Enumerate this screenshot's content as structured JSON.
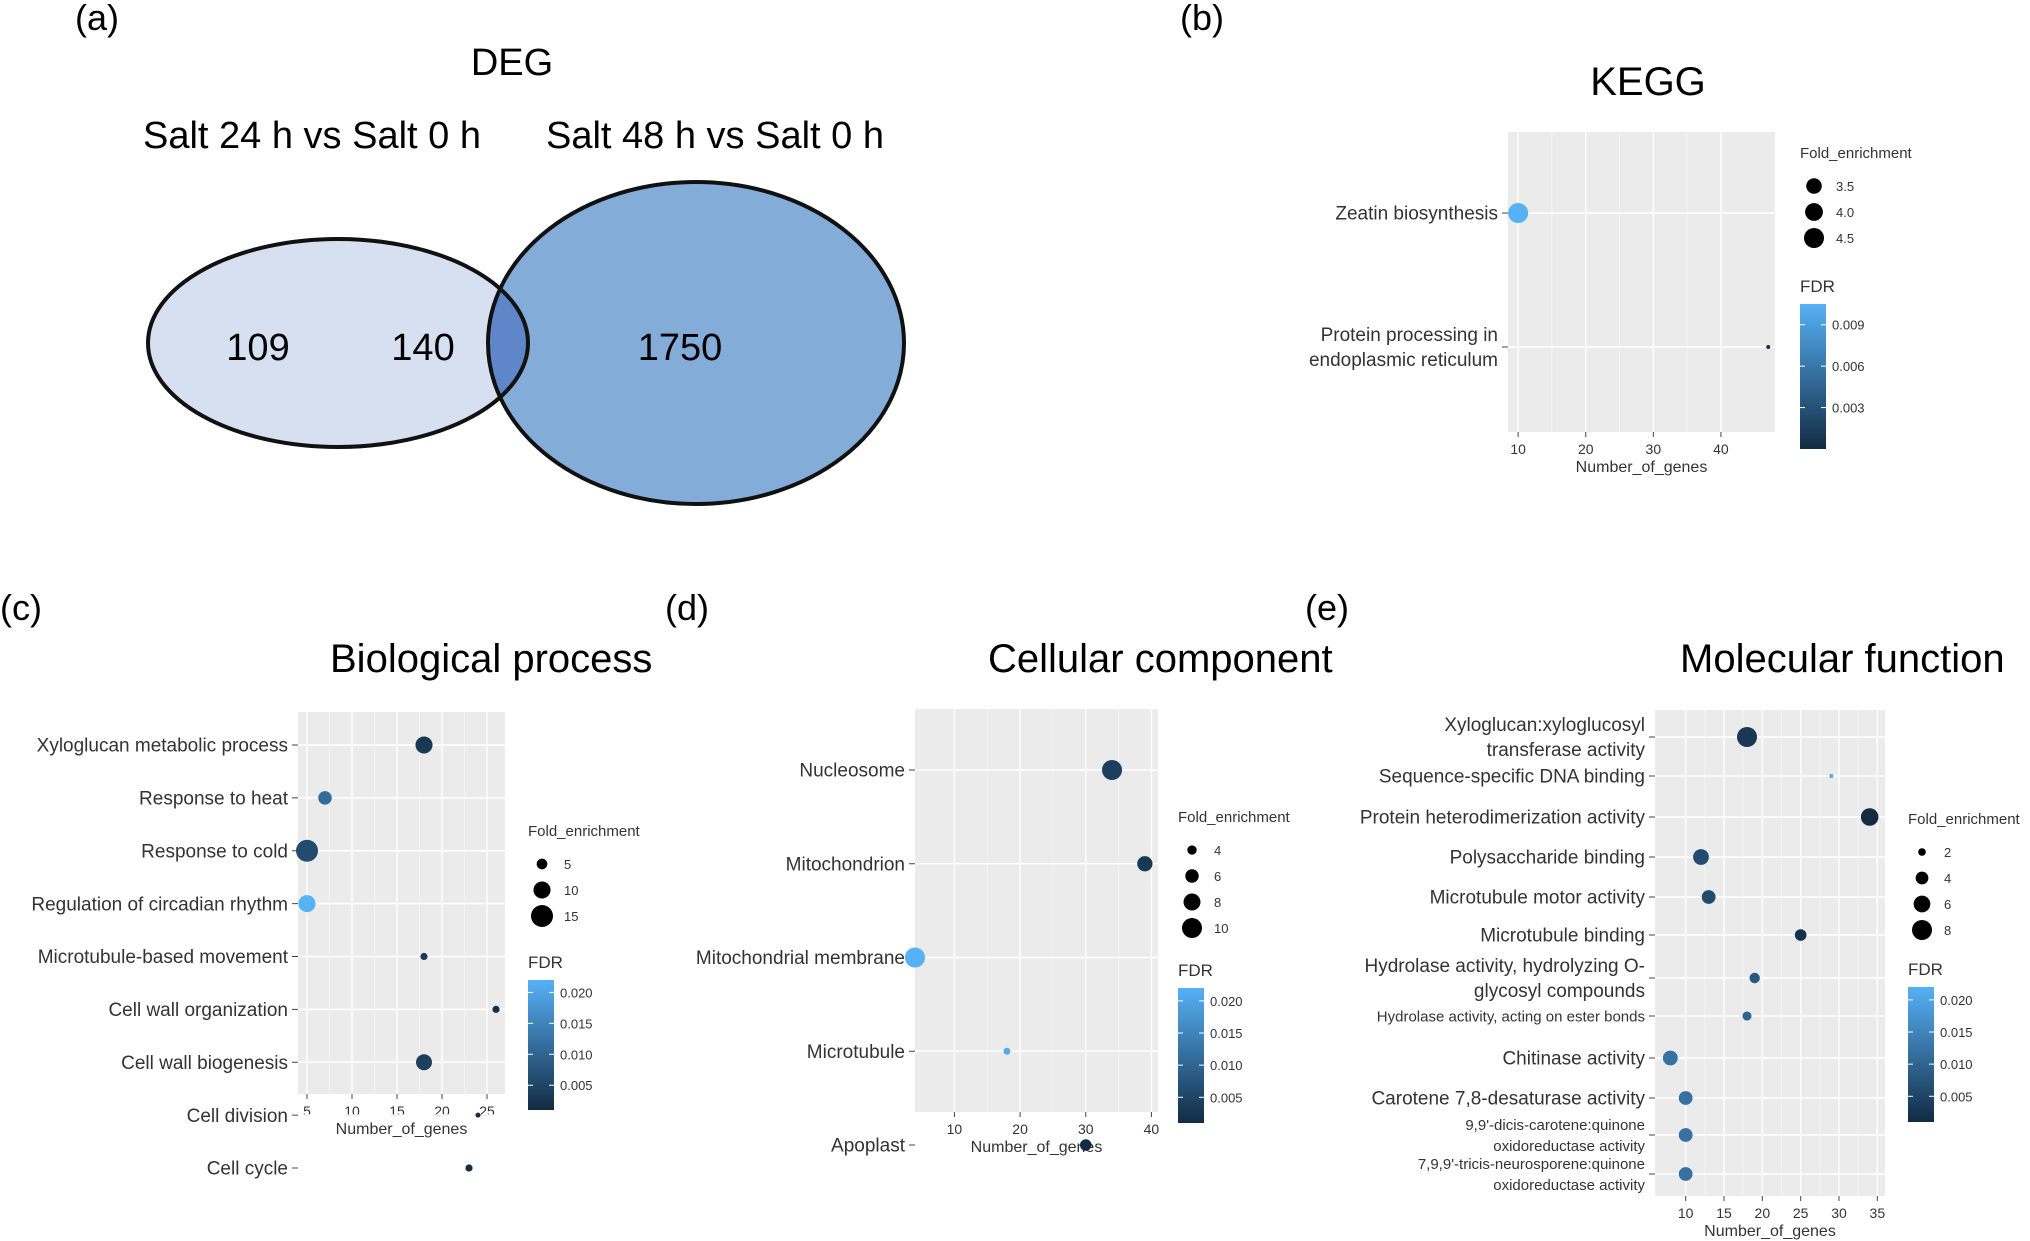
{
  "panels": {
    "a": "(a)",
    "b": "(b)",
    "c": "(c)",
    "d": "(d)",
    "e": "(e)"
  },
  "venn": {
    "title": "DEG",
    "left_label": "Salt 24 h vs Salt 0 h",
    "right_label": "Salt 48 h vs Salt 0 h",
    "left_only": "109",
    "overlap": "140",
    "right_only": "1750",
    "colors": {
      "left": "#d6e0f0",
      "overlap": "#5f86c8",
      "right": "#84acd8"
    }
  },
  "colors": {
    "fdr_high": "#56b1f7",
    "fdr_low": "#132b43",
    "panel_bg": "#ebebeb"
  },
  "chart_data": [
    {
      "id": "kegg",
      "type": "scatter",
      "title": "KEGG",
      "xlabel": "Number_of_genes",
      "xlim": [
        8.5,
        48
      ],
      "xticks": [
        10,
        20,
        30,
        40
      ],
      "categories": [
        "Zeatin biosynthesis",
        "Protein processing in endoplasmic reticulum"
      ],
      "category_labels": [
        [
          "Zeatin biosynthesis"
        ],
        [
          "Protein processing in",
          "endoplasmic reticulum"
        ]
      ],
      "points": [
        {
          "term": "Zeatin biosynthesis",
          "genes": 10,
          "fold_enrichment": 4.5,
          "fdr": 0.0105
        },
        {
          "term": "Protein processing in endoplasmic reticulum",
          "genes": 47,
          "fold_enrichment": 1.5,
          "fdr": 0.0005
        }
      ],
      "size_legend": {
        "title": "Fold_enrichment",
        "values": [
          3.5,
          4.0,
          4.5
        ],
        "labels": [
          "3.5",
          "4.0",
          "4.5"
        ],
        "range": [
          1.5,
          4.5
        ]
      },
      "color_legend": {
        "title": "FDR",
        "values": [
          0.009,
          0.006,
          0.003
        ],
        "labels": [
          "0.009",
          "0.006",
          "0.003"
        ],
        "range": [
          0,
          0.0105
        ]
      }
    },
    {
      "id": "bp",
      "type": "scatter",
      "title": "Biological process",
      "xlabel": "Number_of_genes",
      "xlim": [
        4,
        27
      ],
      "xticks": [
        5,
        10,
        15,
        20,
        25
      ],
      "categories": [
        "Xyloglucan metabolic process",
        "Response to heat",
        "Response to cold",
        "Regulation of circadian rhythm",
        "Microtubule-based movement",
        "Cell wall organization",
        "Cell wall biogenesis",
        "Cell division",
        "Cell cycle"
      ],
      "category_labels": [
        [
          "Xyloglucan metabolic process"
        ],
        [
          "Response to heat"
        ],
        [
          "Response to cold"
        ],
        [
          "Regulation of circadian rhythm"
        ],
        [
          "Microtubule-based movement"
        ],
        [
          "Cell wall organization"
        ],
        [
          "Cell wall biogenesis"
        ],
        [
          "Cell division"
        ],
        [
          "Cell cycle"
        ]
      ],
      "points": [
        {
          "term": "Xyloglucan metabolic process",
          "genes": 18,
          "fold_enrichment": 10,
          "fdr": 0.003
        },
        {
          "term": "Response to heat",
          "genes": 7,
          "fold_enrichment": 7,
          "fdr": 0.011
        },
        {
          "term": "Response to cold",
          "genes": 5,
          "fold_enrichment": 15,
          "fdr": 0.006
        },
        {
          "term": "Regulation of circadian rhythm",
          "genes": 5,
          "fold_enrichment": 10,
          "fdr": 0.022
        },
        {
          "term": "Microtubule-based movement",
          "genes": 18,
          "fold_enrichment": 3,
          "fdr": 0.003
        },
        {
          "term": "Cell wall organization",
          "genes": 26,
          "fold_enrichment": 3,
          "fdr": 0.002
        },
        {
          "term": "Cell wall biogenesis",
          "genes": 18,
          "fold_enrichment": 9,
          "fdr": 0.004
        },
        {
          "term": "Cell division",
          "genes": 24,
          "fold_enrichment": 2,
          "fdr": 0.001
        },
        {
          "term": "Cell cycle",
          "genes": 23,
          "fold_enrichment": 3,
          "fdr": 0.001
        }
      ],
      "size_legend": {
        "title": "Fold_enrichment",
        "values": [
          5,
          10,
          15
        ],
        "labels": [
          "5",
          "10",
          "15"
        ],
        "range": [
          2,
          15
        ]
      },
      "color_legend": {
        "title": "FDR",
        "values": [
          0.02,
          0.015,
          0.01,
          0.005
        ],
        "labels": [
          "0.020",
          "0.015",
          "0.010",
          "0.005"
        ],
        "range": [
          0.001,
          0.022
        ]
      }
    },
    {
      "id": "cc",
      "type": "scatter",
      "title": "Cellular component",
      "xlabel": "Number_of_genes",
      "xlim": [
        4,
        41
      ],
      "xticks": [
        10,
        20,
        30,
        40
      ],
      "categories": [
        "Nucleosome",
        "Mitochondrion",
        "Mitochondrial membrane",
        "Microtubule",
        "Apoplast"
      ],
      "category_labels": [
        [
          "Nucleosome"
        ],
        [
          "Mitochondrion"
        ],
        [
          "Mitochondrial membrane"
        ],
        [
          "Microtubule"
        ],
        [
          "Apoplast"
        ]
      ],
      "points": [
        {
          "term": "Nucleosome",
          "genes": 34,
          "fold_enrichment": 10,
          "fdr": 0.004
        },
        {
          "term": "Mitochondrion",
          "genes": 39,
          "fold_enrichment": 7,
          "fdr": 0.003
        },
        {
          "term": "Mitochondrial membrane",
          "genes": 4,
          "fold_enrichment": 10,
          "fdr": 0.022
        },
        {
          "term": "Microtubule",
          "genes": 18,
          "fold_enrichment": 3,
          "fdr": 0.021
        },
        {
          "term": "Apoplast",
          "genes": 30,
          "fold_enrichment": 5,
          "fdr": 0.001
        }
      ],
      "size_legend": {
        "title": "Fold_enrichment",
        "values": [
          4,
          6,
          8,
          10
        ],
        "labels": [
          "4",
          "6",
          "8",
          "10"
        ],
        "range": [
          2,
          10
        ]
      },
      "color_legend": {
        "title": "FDR",
        "values": [
          0.02,
          0.015,
          0.01,
          0.005
        ],
        "labels": [
          "0.020",
          "0.015",
          "0.010",
          "0.005"
        ],
        "range": [
          0.001,
          0.022
        ]
      }
    },
    {
      "id": "mf",
      "type": "scatter",
      "title": "Molecular function",
      "xlabel": "Number_of_genes",
      "xlim": [
        6,
        36
      ],
      "xticks": [
        10,
        15,
        20,
        25,
        30,
        35
      ],
      "categories": [
        "Xyloglucan:xyloglucosyl transferase activity",
        "Sequence-specific DNA binding",
        "Protein heterodimerization activity",
        "Polysaccharide binding",
        "Microtubule motor activity",
        "Microtubule binding",
        "Hydrolase activity, hydrolyzing O-glycosyl compounds",
        "Hydrolase activity, acting on ester bonds",
        "Chitinase activity",
        "Carotene 7,8-desaturase activity",
        "9,9'-dicis-carotene:quinone oxidoreductase activity",
        "7,9,9'-tricis-neurosporene:quinone oxidoreductase activity"
      ],
      "category_labels": [
        [
          "Xyloglucan:xyloglucosyl",
          "transferase activity"
        ],
        [
          "Sequence-specific DNA binding"
        ],
        [
          "Protein heterodimerization activity"
        ],
        [
          "Polysaccharide binding"
        ],
        [
          "Microtubule motor activity"
        ],
        [
          "Microtubule binding"
        ],
        [
          "Hydrolase activity, hydrolyzing O-",
          "glycosyl compounds"
        ],
        [
          "Hydrolase activity, acting on ester bonds"
        ],
        [
          "Chitinase activity"
        ],
        [
          "Carotene 7,8-desaturase activity"
        ],
        [
          "9,9'-dicis-carotene:quinone",
          "oxidoreductase activity"
        ],
        [
          "7,9,9'-tricis-neurosporene:quinone",
          "oxidoreductase activity"
        ]
      ],
      "points": [
        {
          "term": "Xyloglucan:xyloglucosyl transferase activity",
          "genes": 18,
          "fold_enrichment": 8,
          "fdr": 0.003
        },
        {
          "term": "Sequence-specific DNA binding",
          "genes": 29,
          "fold_enrichment": 1,
          "fdr": 0.021
        },
        {
          "term": "Protein heterodimerization activity",
          "genes": 34,
          "fold_enrichment": 6.5,
          "fdr": 0.001
        },
        {
          "term": "Polysaccharide binding",
          "genes": 12,
          "fold_enrichment": 5.5,
          "fdr": 0.006
        },
        {
          "term": "Microtubule motor activity",
          "genes": 13,
          "fold_enrichment": 4.5,
          "fdr": 0.006
        },
        {
          "term": "Microtubule binding",
          "genes": 25,
          "fold_enrichment": 3.5,
          "fdr": 0.002
        },
        {
          "term": "Hydrolase activity, hydrolyzing O-glycosyl compounds",
          "genes": 19,
          "fold_enrichment": 3,
          "fdr": 0.008
        },
        {
          "term": "Hydrolase activity, acting on ester bonds",
          "genes": 18,
          "fold_enrichment": 2.5,
          "fdr": 0.01
        },
        {
          "term": "Chitinase activity",
          "genes": 8,
          "fold_enrichment": 5,
          "fdr": 0.012
        },
        {
          "term": "Carotene 7,8-desaturase activity",
          "genes": 10,
          "fold_enrichment": 4.5,
          "fdr": 0.012
        },
        {
          "term": "9,9'-dicis-carotene:quinone oxidoreductase activity",
          "genes": 10,
          "fold_enrichment": 4.5,
          "fdr": 0.012
        },
        {
          "term": "7,9,9'-tricis-neurosporene:quinone oxidoreductase activity",
          "genes": 10,
          "fold_enrichment": 4.5,
          "fdr": 0.012
        }
      ],
      "size_legend": {
        "title": "Fold_enrichment",
        "values": [
          2,
          4,
          6,
          8
        ],
        "labels": [
          "2",
          "4",
          "6",
          "8"
        ],
        "range": [
          1,
          8
        ]
      },
      "color_legend": {
        "title": "FDR",
        "values": [
          0.02,
          0.015,
          0.01,
          0.005
        ],
        "labels": [
          "0.020",
          "0.015",
          "0.010",
          "0.005"
        ],
        "range": [
          0.001,
          0.022
        ]
      }
    }
  ]
}
